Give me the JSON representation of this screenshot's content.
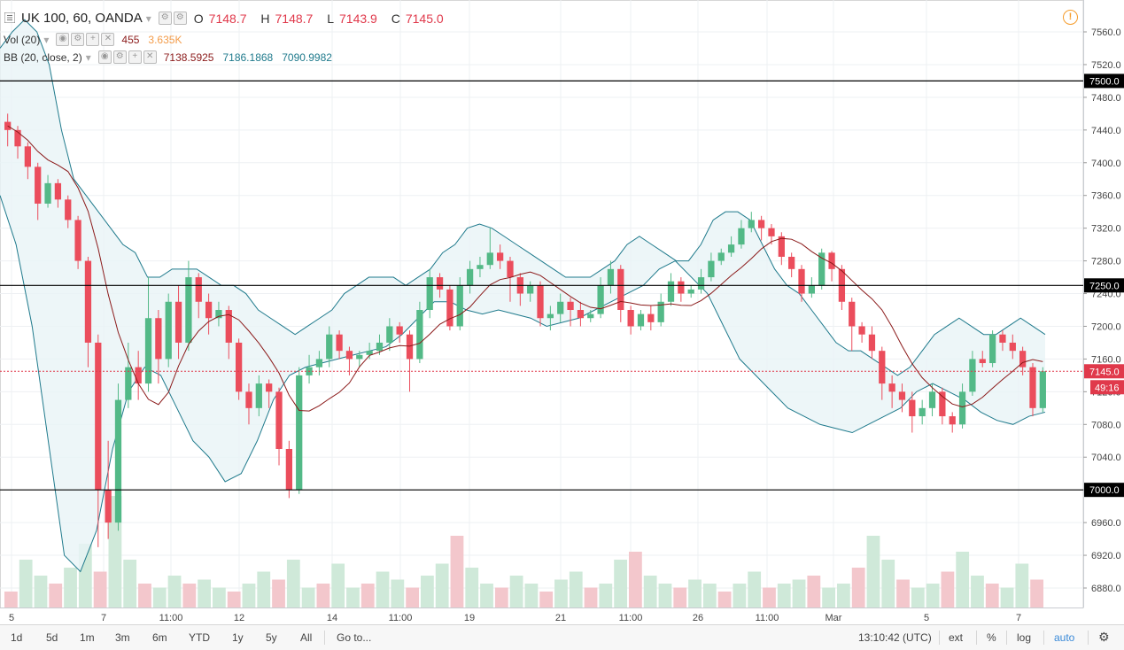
{
  "header": {
    "symbol": "UK 100, 60, OANDA",
    "open_label": "O",
    "open": "7148.7",
    "high_label": "H",
    "high": "7148.7",
    "low_label": "L",
    "low": "7143.9",
    "close_label": "C",
    "close": "7145.0",
    "vol_label": "Vol (20)",
    "vol_value": "455",
    "vol_ma": "3.635K",
    "bb_label": "BB (20, close, 2)",
    "bb_mid": "7138.5925",
    "bb_upper": "7186.1868",
    "bb_lower": "7090.9982"
  },
  "price_axis": {
    "ticks": [
      "7560.0",
      "7520.0",
      "7480.0",
      "7440.0",
      "7400.0",
      "7360.0",
      "7320.0",
      "7280.0",
      "7240.0",
      "7200.0",
      "7160.0",
      "7120.0",
      "7080.0",
      "7040.0",
      "7000.0",
      "6960.0",
      "6920.0",
      "6880.0"
    ],
    "last_price": "7145.0",
    "countdown": "49:16",
    "levels": [
      {
        "value": 7500,
        "label": "7500.0"
      },
      {
        "value": 7250,
        "label": "7250.0"
      },
      {
        "value": 7000,
        "label": "7000.0"
      }
    ]
  },
  "time_axis": {
    "labels": [
      "5",
      "7",
      "11:00",
      "12",
      "14",
      "11:00",
      "19",
      "21",
      "11:00",
      "26",
      "11:00",
      "Mar",
      "5",
      "7"
    ]
  },
  "bottom_bar": {
    "ranges": [
      "1d",
      "5d",
      "1m",
      "3m",
      "6m",
      "YTD",
      "1y",
      "5y",
      "All"
    ],
    "goto": "Go to...",
    "clock": "13:10:42 (UTC)",
    "ext": "ext",
    "percent": "%",
    "log": "log",
    "auto": "auto"
  },
  "colors": {
    "up": "#53b987",
    "down": "#eb4d5c",
    "bb_band": "#1f7a8c",
    "bb_fill": "#e8f4f6",
    "bb_mid": "#8b1a1a",
    "vol_ma": "#f39c4a",
    "level_line": "#000000",
    "last_price": "#e0394b"
  },
  "chart_data": {
    "type": "candlestick",
    "ylim": [
      6860,
      7580
    ],
    "series": [
      {
        "name": "UK 100",
        "values": [
          [
            7450,
            7440,
            7460,
            7420
          ],
          [
            7440,
            7420,
            7445,
            7405
          ],
          [
            7420,
            7395,
            7425,
            7380
          ],
          [
            7395,
            7350,
            7400,
            7330
          ],
          [
            7350,
            7375,
            7385,
            7345
          ],
          [
            7375,
            7355,
            7380,
            7345
          ],
          [
            7355,
            7330,
            7360,
            7320
          ],
          [
            7330,
            7280,
            7335,
            7270
          ],
          [
            7280,
            7180,
            7285,
            7150
          ],
          [
            7180,
            7000,
            7190,
            6930
          ],
          [
            7000,
            6960,
            7060,
            6940
          ],
          [
            6960,
            7110,
            7130,
            6950
          ],
          [
            7110,
            7150,
            7180,
            7100
          ],
          [
            7150,
            7130,
            7170,
            7110
          ],
          [
            7130,
            7210,
            7260,
            7120
          ],
          [
            7210,
            7160,
            7220,
            7130
          ],
          [
            7160,
            7230,
            7240,
            7150
          ],
          [
            7230,
            7180,
            7250,
            7160
          ],
          [
            7180,
            7260,
            7280,
            7170
          ],
          [
            7260,
            7230,
            7265,
            7210
          ],
          [
            7230,
            7210,
            7240,
            7190
          ],
          [
            7210,
            7220,
            7230,
            7200
          ],
          [
            7220,
            7180,
            7225,
            7160
          ],
          [
            7180,
            7120,
            7185,
            7110
          ],
          [
            7120,
            7100,
            7130,
            7080
          ],
          [
            7100,
            7130,
            7140,
            7090
          ],
          [
            7130,
            7120,
            7135,
            7100
          ],
          [
            7120,
            7050,
            7125,
            7030
          ],
          [
            7050,
            7000,
            7060,
            6990
          ],
          [
            7000,
            7140,
            7150,
            6995
          ],
          [
            7140,
            7150,
            7165,
            7130
          ],
          [
            7150,
            7160,
            7170,
            7140
          ],
          [
            7160,
            7190,
            7200,
            7150
          ],
          [
            7190,
            7170,
            7195,
            7160
          ],
          [
            7170,
            7160,
            7175,
            7140
          ],
          [
            7160,
            7165,
            7170,
            7150
          ],
          [
            7165,
            7170,
            7180,
            7160
          ],
          [
            7170,
            7180,
            7190,
            7165
          ],
          [
            7180,
            7200,
            7210,
            7170
          ],
          [
            7200,
            7190,
            7205,
            7180
          ],
          [
            7190,
            7160,
            7195,
            7120
          ],
          [
            7160,
            7220,
            7230,
            7155
          ],
          [
            7220,
            7260,
            7270,
            7210
          ],
          [
            7260,
            7245,
            7265,
            7235
          ],
          [
            7245,
            7200,
            7250,
            7195
          ],
          [
            7200,
            7250,
            7260,
            7195
          ],
          [
            7250,
            7270,
            7280,
            7240
          ],
          [
            7270,
            7275,
            7285,
            7260
          ],
          [
            7275,
            7290,
            7320,
            7270
          ],
          [
            7290,
            7280,
            7300,
            7270
          ],
          [
            7280,
            7260,
            7285,
            7230
          ],
          [
            7260,
            7240,
            7265,
            7225
          ],
          [
            7240,
            7250,
            7255,
            7230
          ],
          [
            7250,
            7210,
            7255,
            7200
          ],
          [
            7210,
            7215,
            7225,
            7195
          ],
          [
            7215,
            7230,
            7240,
            7205
          ],
          [
            7230,
            7220,
            7235,
            7200
          ],
          [
            7220,
            7210,
            7230,
            7200
          ],
          [
            7210,
            7215,
            7220,
            7205
          ],
          [
            7215,
            7250,
            7260,
            7210
          ],
          [
            7250,
            7270,
            7280,
            7240
          ],
          [
            7270,
            7220,
            7275,
            7205
          ],
          [
            7220,
            7200,
            7225,
            7190
          ],
          [
            7200,
            7215,
            7220,
            7195
          ],
          [
            7215,
            7205,
            7225,
            7195
          ],
          [
            7205,
            7230,
            7240,
            7200
          ],
          [
            7230,
            7255,
            7265,
            7225
          ],
          [
            7255,
            7240,
            7260,
            7230
          ],
          [
            7240,
            7245,
            7250,
            7235
          ],
          [
            7245,
            7260,
            7270,
            7240
          ],
          [
            7260,
            7280,
            7290,
            7255
          ],
          [
            7280,
            7290,
            7295,
            7275
          ],
          [
            7290,
            7300,
            7310,
            7285
          ],
          [
            7300,
            7320,
            7330,
            7295
          ],
          [
            7320,
            7330,
            7340,
            7315
          ],
          [
            7330,
            7320,
            7335,
            7305
          ],
          [
            7320,
            7310,
            7325,
            7300
          ],
          [
            7310,
            7285,
            7315,
            7275
          ],
          [
            7285,
            7270,
            7290,
            7260
          ],
          [
            7270,
            7240,
            7275,
            7230
          ],
          [
            7240,
            7250,
            7260,
            7235
          ],
          [
            7250,
            7290,
            7295,
            7245
          ],
          [
            7290,
            7270,
            7292,
            7255
          ],
          [
            7270,
            7230,
            7275,
            7220
          ],
          [
            7230,
            7200,
            7235,
            7170
          ],
          [
            7200,
            7190,
            7205,
            7180
          ],
          [
            7190,
            7170,
            7200,
            7160
          ],
          [
            7170,
            7130,
            7175,
            7110
          ],
          [
            7130,
            7120,
            7140,
            7100
          ],
          [
            7120,
            7110,
            7130,
            7095
          ],
          [
            7110,
            7090,
            7120,
            7070
          ],
          [
            7090,
            7100,
            7110,
            7080
          ],
          [
            7100,
            7120,
            7130,
            7090
          ],
          [
            7120,
            7090,
            7125,
            7080
          ],
          [
            7090,
            7080,
            7095,
            7070
          ],
          [
            7080,
            7120,
            7130,
            7075
          ],
          [
            7120,
            7160,
            7170,
            7115
          ],
          [
            7160,
            7155,
            7170,
            7150
          ],
          [
            7155,
            7190,
            7195,
            7150
          ],
          [
            7190,
            7180,
            7195,
            7170
          ],
          [
            7180,
            7170,
            7190,
            7160
          ],
          [
            7170,
            7150,
            7175,
            7140
          ],
          [
            7150,
            7100,
            7155,
            7090
          ],
          [
            7100,
            7145,
            7150,
            7095
          ]
        ]
      },
      {
        "name": "BB upper",
        "values": [
          7540,
          7560,
          7575,
          7560,
          7520,
          7440,
          7380,
          7360,
          7340,
          7320,
          7300,
          7290,
          7260,
          7260,
          7270,
          7270,
          7270,
          7260,
          7250,
          7250,
          7240,
          7220,
          7210,
          7200,
          7190,
          7200,
          7210,
          7220,
          7240,
          7250,
          7260,
          7260,
          7260,
          7250,
          7260,
          7270,
          7290,
          7300,
          7320,
          7325,
          7320,
          7310,
          7300,
          7290,
          7280,
          7270,
          7260,
          7260,
          7260,
          7270,
          7280,
          7300,
          7310,
          7300,
          7290,
          7280,
          7280,
          7300,
          7330,
          7340,
          7340,
          7330,
          7300,
          7270,
          7250,
          7240,
          7220,
          7200,
          7180,
          7170,
          7170,
          7160,
          7150,
          7140,
          7150,
          7170,
          7190,
          7200,
          7210,
          7200,
          7190,
          7190,
          7200,
          7210,
          7200,
          7190
        ]
      },
      {
        "name": "BB lower",
        "values": [
          7360,
          7300,
          7200,
          7060,
          6920,
          6900,
          6950,
          7050,
          7120,
          7150,
          7140,
          7100,
          7060,
          7040,
          7010,
          7020,
          7060,
          7110,
          7140,
          7150,
          7155,
          7160,
          7165,
          7170,
          7175,
          7190,
          7210,
          7230,
          7230,
          7220,
          7215,
          7220,
          7215,
          7210,
          7200,
          7205,
          7210,
          7220,
          7230,
          7240,
          7250,
          7270,
          7280,
          7260,
          7240,
          7200,
          7160,
          7140,
          7120,
          7100,
          7090,
          7080,
          7075,
          7070,
          7080,
          7090,
          7100,
          7120,
          7130,
          7120,
          7110,
          7095,
          7085,
          7080,
          7090,
          7095
        ]
      },
      {
        "name": "Volume",
        "values": [
          20,
          60,
          40,
          30,
          50,
          80,
          45,
          140,
          60,
          30,
          25,
          40,
          30,
          35,
          25,
          20,
          30,
          45,
          35,
          60,
          25,
          30,
          55,
          25,
          30,
          45,
          35,
          25,
          40,
          55,
          90,
          50,
          30,
          25,
          40,
          30,
          20,
          35,
          45,
          25,
          30,
          60,
          70,
          40,
          30,
          25,
          35,
          30,
          20,
          30,
          45,
          25,
          30,
          35,
          40,
          25,
          30,
          50,
          90,
          60,
          35,
          25,
          30,
          45,
          70,
          40,
          30,
          25,
          55,
          35
        ]
      }
    ]
  }
}
